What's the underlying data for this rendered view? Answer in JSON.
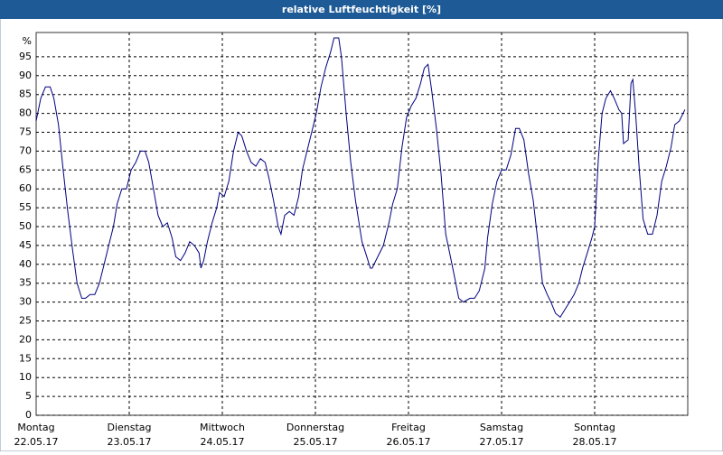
{
  "chart_data": {
    "type": "line",
    "title": "relative Luftfeuchtigkeit [%]",
    "y_label": "%",
    "xlim": [
      0,
      7
    ],
    "xticks": [
      {
        "value": 0,
        "label": "Montag"
      },
      {
        "value": 1,
        "label": "Dienstag"
      },
      {
        "value": 2,
        "label": "Mittwoch"
      },
      {
        "value": 3,
        "label": "Donnerstag"
      },
      {
        "value": 4,
        "label": "Freitag"
      },
      {
        "value": 5,
        "label": "Samstag"
      },
      {
        "value": 6,
        "label": "Sonntag"
      }
    ],
    "xtick_dates": [
      "22.05.17",
      "23.05.17",
      "24.05.17",
      "25.05.17",
      "26.05.17",
      "27.05.17",
      "28.05.17"
    ],
    "ylim": [
      0,
      100
    ],
    "yticks": [
      0,
      5,
      10,
      15,
      20,
      25,
      30,
      35,
      40,
      45,
      50,
      55,
      60,
      65,
      70,
      75,
      80,
      85,
      90,
      95
    ],
    "grid": true,
    "series": [
      {
        "color": "#000080",
        "x": [
          0,
          0.05,
          0.1,
          0.15,
          0.19,
          0.24,
          0.29,
          0.34,
          0.39,
          0.44,
          0.49,
          0.53,
          0.58,
          0.63,
          0.68,
          0.73,
          0.78,
          0.83,
          0.87,
          0.92,
          0.97,
          1.02,
          1.07,
          1.12,
          1.17,
          1.21,
          1.26,
          1.31,
          1.36,
          1.41,
          1.46,
          1.5,
          1.55,
          1.6,
          1.65,
          1.7,
          1.75,
          1.77,
          1.8,
          1.84,
          1.89,
          1.94,
          1.97,
          2.02,
          2.07,
          2.12,
          2.17,
          2.21,
          2.26,
          2.31,
          2.36,
          2.41,
          2.46,
          2.5,
          2.55,
          2.6,
          2.63,
          2.67,
          2.72,
          2.77,
          2.82,
          2.86,
          2.91,
          2.96,
          3.01,
          3.06,
          3.11,
          3.16,
          3.2,
          3.25,
          3.28,
          3.33,
          3.38,
          3.43,
          3.5,
          3.54,
          3.59,
          3.61,
          3.67,
          3.73,
          3.79,
          3.83,
          3.88,
          3.93,
          3.98,
          4.03,
          4.08,
          4.13,
          4.17,
          4.21,
          4.25,
          4.3,
          4.35,
          4.4,
          4.45,
          4.5,
          4.54,
          4.59,
          4.66,
          4.71,
          4.76,
          4.82,
          4.85,
          4.9,
          4.95,
          5.0,
          5.05,
          5.1,
          5.15,
          5.19,
          5.24,
          5.29,
          5.34,
          5.39,
          5.44,
          5.49,
          5.53,
          5.58,
          5.63,
          5.68,
          5.73,
          5.78,
          5.83,
          5.87,
          5.92,
          5.97,
          6.0,
          6.04,
          6.08,
          6.12,
          6.17,
          6.21,
          6.26,
          6.29,
          6.31,
          6.36,
          6.39,
          6.41,
          6.44,
          6.48,
          6.52,
          6.57,
          6.62,
          6.67,
          6.72,
          6.77,
          6.82,
          6.86,
          6.91,
          6.97
        ],
        "values": [
          78,
          84,
          87,
          87,
          84,
          77,
          65,
          54,
          44,
          35,
          31,
          31,
          32,
          32,
          35,
          40,
          45,
          50,
          56,
          60,
          60,
          65,
          67,
          70,
          70,
          67,
          60,
          53,
          50,
          51,
          47,
          42,
          41,
          43,
          46,
          45,
          43,
          39,
          41,
          46,
          51,
          55,
          59,
          58,
          62,
          70,
          75,
          74,
          70,
          67,
          66,
          68,
          67,
          63,
          57,
          50,
          48,
          53,
          54,
          53,
          58,
          65,
          70,
          75,
          80,
          87,
          92,
          96,
          100,
          100,
          95,
          80,
          67,
          57,
          46,
          43,
          39,
          39,
          42,
          45,
          51,
          56,
          60,
          71,
          79,
          82,
          84,
          88,
          92,
          93,
          86,
          76,
          64,
          48,
          42,
          36,
          31,
          30,
          31,
          31,
          33,
          39,
          47,
          56,
          62,
          65,
          65,
          69,
          76,
          76,
          73,
          64,
          57,
          46,
          35,
          32,
          30,
          27,
          26,
          28,
          30,
          32,
          35,
          39,
          43,
          47,
          50,
          68,
          80,
          84,
          86,
          84,
          81,
          80,
          72,
          73,
          88,
          89,
          80,
          65,
          52,
          48,
          48,
          53,
          62,
          66,
          71,
          77,
          78,
          81
        ]
      }
    ]
  }
}
